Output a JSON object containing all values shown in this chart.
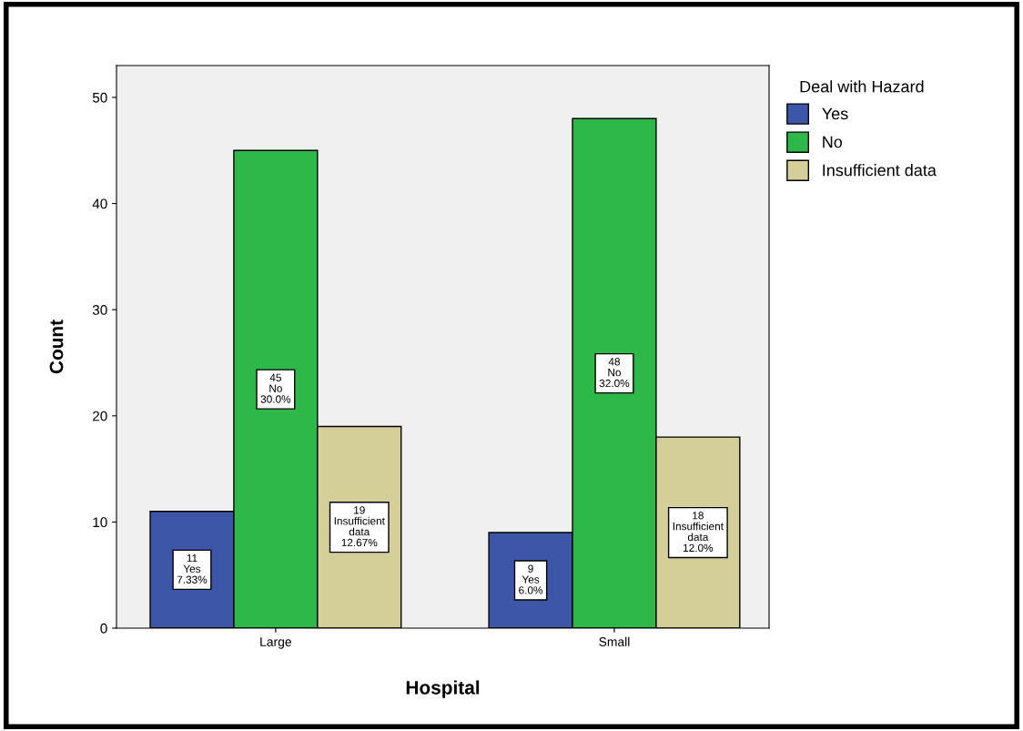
{
  "chart_data": {
    "type": "bar",
    "xlabel": "Hospital",
    "ylabel": "Count",
    "legend_title": "Deal with Hazard",
    "categories": [
      "Large",
      "Small"
    ],
    "series": [
      {
        "name": "Yes",
        "color": "#3d56a8",
        "values": [
          11,
          9
        ],
        "value_labels": [
          "11\nYes\n7.33%",
          "9\nYes\n6.0%"
        ]
      },
      {
        "name": "No",
        "color": "#2fb84a",
        "values": [
          45,
          48
        ],
        "value_labels": [
          "45\nNo\n30.0%",
          "48\nNo\n32.0%"
        ]
      },
      {
        "name": "Insufficient data",
        "color": "#d4cf99",
        "values": [
          19,
          18
        ],
        "value_labels": [
          "19\nInsufficient\ndata\n12.67%",
          "18\nInsufficient\ndata\n12.0%"
        ]
      }
    ],
    "ylim": [
      0,
      53
    ],
    "yticks": [
      0,
      10,
      20,
      30,
      40,
      50
    ],
    "grid": false,
    "legend": "top right"
  }
}
